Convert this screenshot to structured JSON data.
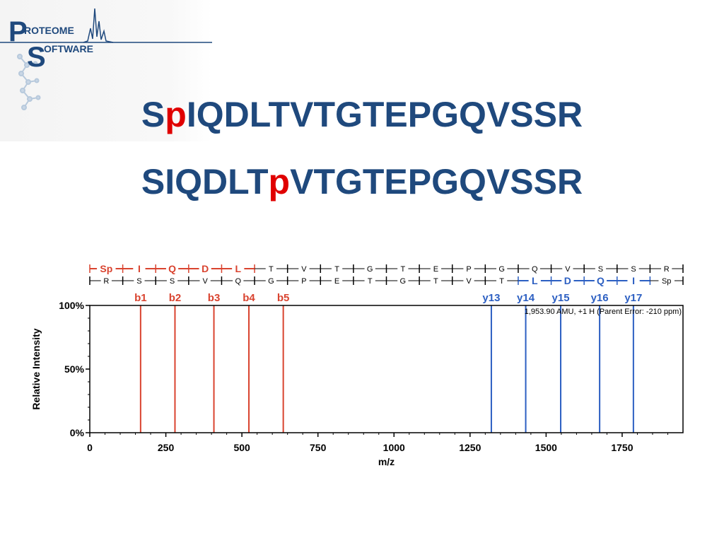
{
  "logo": {
    "line1": "ROTEOME",
    "line2": "OFTWARE",
    "big_p": "P",
    "big_s": "S",
    "colors": {
      "primary": "#1f497d",
      "light": "#9fb7cf"
    }
  },
  "slide": {
    "title1": {
      "pre": "S",
      "mod": "p",
      "post": "IQDLTVTGTEPGQVSSR"
    },
    "title2": {
      "pre": "SIQDLT",
      "mod": "p",
      "post": "VTGTEPGQVSSR"
    },
    "colors": {
      "title": "#1f497d",
      "mod": "#e00000"
    }
  },
  "chart_data": {
    "type": "bar",
    "xlabel": "m/z",
    "ylabel": "Relative Intensity",
    "xlim": [
      0,
      1950
    ],
    "ylim": [
      0,
      100
    ],
    "x_ticks": [
      0,
      250,
      500,
      750,
      1000,
      1250,
      1500,
      1750
    ],
    "x_tick_labels": [
      "0",
      "250",
      "500",
      "750",
      "1000",
      "1250",
      "1500",
      "1750"
    ],
    "y_ticks": [
      0,
      50,
      100
    ],
    "y_tick_labels": [
      "0%",
      "50%",
      "100%"
    ],
    "annotation": "1,953.90 AMU, +1 H (Parent Error: -210 ppm)",
    "series": [
      {
        "name": "b ions",
        "color": "#d9432f",
        "labels": [
          "b1",
          "b2",
          "b3",
          "b4",
          "b5"
        ],
        "x": [
          167,
          280,
          408,
          523,
          636
        ],
        "y": [
          100,
          100,
          100,
          100,
          100
        ]
      },
      {
        "name": "y ions",
        "color": "#2c5fc2",
        "labels": [
          "y13",
          "y14",
          "y15",
          "y16",
          "y17"
        ],
        "x": [
          1320,
          1433,
          1548,
          1676,
          1787
        ],
        "y": [
          100,
          100,
          100,
          100,
          100
        ]
      }
    ],
    "sequence_top": [
      {
        "text": "Sp",
        "color": "red"
      },
      {
        "text": "I",
        "color": "red"
      },
      {
        "text": "Q",
        "color": "red"
      },
      {
        "text": "D",
        "color": "red"
      },
      {
        "text": "L",
        "color": "red"
      },
      {
        "text": "T",
        "color": "black"
      },
      {
        "text": "V",
        "color": "black"
      },
      {
        "text": "T",
        "color": "black"
      },
      {
        "text": "G",
        "color": "black"
      },
      {
        "text": "T",
        "color": "black"
      },
      {
        "text": "E",
        "color": "black"
      },
      {
        "text": "P",
        "color": "black"
      },
      {
        "text": "G",
        "color": "black"
      },
      {
        "text": "Q",
        "color": "black"
      },
      {
        "text": "V",
        "color": "black"
      },
      {
        "text": "S",
        "color": "black"
      },
      {
        "text": "S",
        "color": "black"
      },
      {
        "text": "R",
        "color": "black"
      }
    ],
    "sequence_bottom": [
      {
        "text": "R",
        "color": "black"
      },
      {
        "text": "S",
        "color": "black"
      },
      {
        "text": "S",
        "color": "black"
      },
      {
        "text": "V",
        "color": "black"
      },
      {
        "text": "Q",
        "color": "black"
      },
      {
        "text": "G",
        "color": "black"
      },
      {
        "text": "P",
        "color": "black"
      },
      {
        "text": "E",
        "color": "black"
      },
      {
        "text": "T",
        "color": "black"
      },
      {
        "text": "G",
        "color": "black"
      },
      {
        "text": "T",
        "color": "black"
      },
      {
        "text": "V",
        "color": "black"
      },
      {
        "text": "T",
        "color": "black"
      },
      {
        "text": "L",
        "color": "blue"
      },
      {
        "text": "D",
        "color": "blue"
      },
      {
        "text": "Q",
        "color": "blue"
      },
      {
        "text": "I",
        "color": "blue"
      },
      {
        "text": "Sp",
        "color": "black"
      }
    ]
  }
}
